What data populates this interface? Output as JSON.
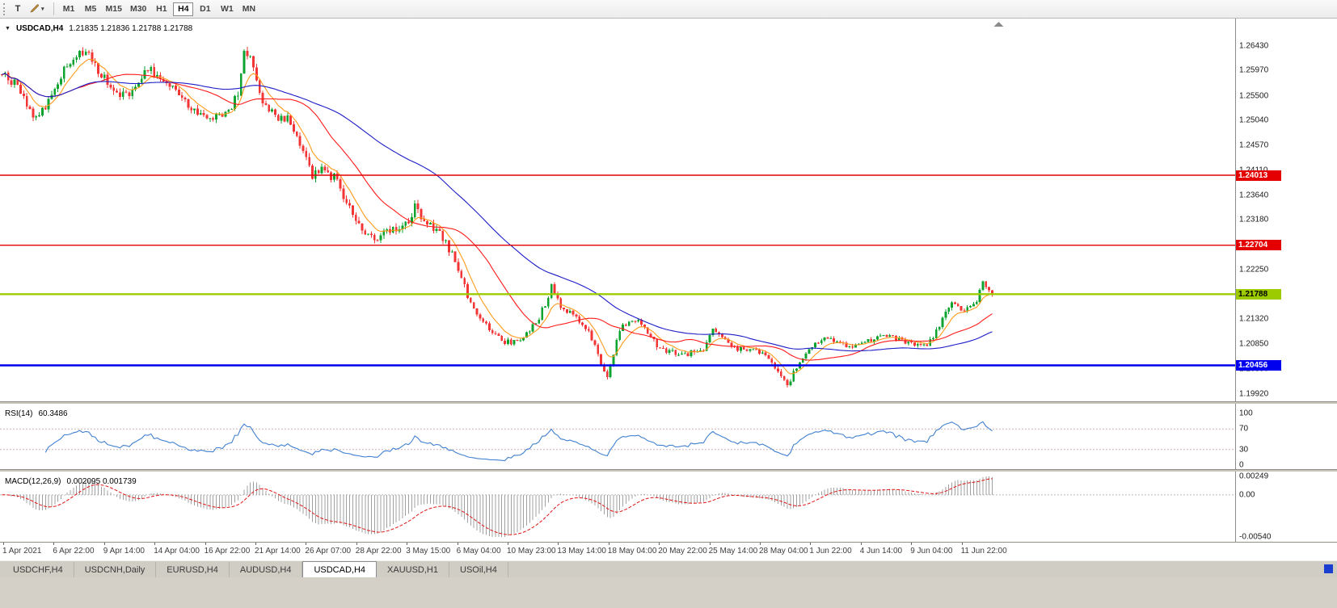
{
  "toolbar": {
    "text_tool": "T",
    "timeframes": [
      "M1",
      "M5",
      "M15",
      "M30",
      "H1",
      "H4",
      "D1",
      "W1",
      "MN"
    ],
    "active_timeframe": "H4"
  },
  "chart": {
    "symbol_title": "USDCAD,H4",
    "ohlc": "1.21835 1.21836 1.21788 1.21788"
  },
  "indicators": {
    "rsi_label": "RSI(14)",
    "rsi_value": "60.3486",
    "macd_label": "MACD(12,26,9)",
    "macd_values": "0.002095 0.001739"
  },
  "tabs": [
    {
      "label": "USDCHF,H4",
      "active": false
    },
    {
      "label": "USDCNH,Daily",
      "active": false
    },
    {
      "label": "EURUSD,H4",
      "active": false
    },
    {
      "label": "AUDUSD,H4",
      "active": false
    },
    {
      "label": "USDCAD,H4",
      "active": true
    },
    {
      "label": "XAUUSD,H1",
      "active": false
    },
    {
      "label": "USOil,H4",
      "active": false
    }
  ],
  "colors": {
    "up": "#0da32f",
    "down": "#f33535",
    "rsi_line": "#4080d0",
    "level_dash": "#c9b2b2",
    "zero_dash": "#b8b8b8"
  },
  "chart_data": {
    "type": "candlestick",
    "symbol": "USDCAD",
    "timeframe": "H4",
    "last_price": 1.21788,
    "candle_count": 320,
    "noise": 0.0014,
    "wick": 0.0006,
    "y_range": {
      "top_price": 1.26944,
      "bottom_price": 1.19784
    },
    "price_axis_labels": [
      "1.26430",
      "1.25970",
      "1.25500",
      "1.25040",
      "1.24570",
      "1.24110",
      "1.23640",
      "1.23180",
      "1.22710",
      "1.22250",
      "1.21780",
      "1.21320",
      "1.20850",
      "1.20390",
      "1.19920"
    ],
    "horizontal_lines": [
      {
        "price": 1.24013,
        "label": "1.24013",
        "color": "#e40000",
        "width": 1.4,
        "text_color": "#ffffff"
      },
      {
        "price": 1.22704,
        "label": "1.22704",
        "color": "#e40000",
        "width": 1.4,
        "text_color": "#ffffff"
      },
      {
        "price": 1.21788,
        "label": "1.21788",
        "color": "#9ccb00",
        "width": 2.4,
        "text_color": "#000000"
      },
      {
        "price": 1.20456,
        "label": "1.20456",
        "color": "#0000ee",
        "width": 2.4,
        "text_color": "#ffffff"
      }
    ],
    "moving_averages": [
      {
        "kind": "ema",
        "period": 8,
        "color": "#ff9a1a"
      },
      {
        "kind": "sma",
        "period": 25,
        "color": "#ff1a1a"
      },
      {
        "kind": "sma",
        "period": 64,
        "color": "#1c1cc8"
      }
    ],
    "rsi": {
      "period": 14,
      "levels": [
        70,
        30
      ],
      "axis_labels": [
        [
          "100",
          100
        ],
        [
          "70",
          70
        ],
        [
          "30",
          30
        ],
        [
          "0",
          0
        ]
      ]
    },
    "macd": {
      "fast": 12,
      "slow": 26,
      "signal": 9,
      "axis_top": "0.00249",
      "axis_zero": "0.00",
      "axis_bottom": "-0.00540",
      "hist_color": "#a0a0a0",
      "signal_color": "#e01515"
    },
    "time_labels": [
      "1 Apr 2021",
      "6 Apr 22:00",
      "9 Apr 14:00",
      "14 Apr 04:00",
      "16 Apr 22:00",
      "21 Apr 14:00",
      "26 Apr 07:00",
      "28 Apr 22:00",
      "3 May 15:00",
      "6 May 04:00",
      "10 May 23:00",
      "13 May 14:00",
      "18 May 04:00",
      "20 May 22:00",
      "25 May 14:00",
      "28 May 04:00",
      "1 Jun 22:00",
      "4 Jun 14:00",
      "9 Jun 04:00",
      "11 Jun 22:00"
    ],
    "price_path": [
      [
        0,
        1.259
      ],
      [
        4,
        1.2572
      ],
      [
        8,
        1.2534
      ],
      [
        10,
        1.2504
      ],
      [
        13,
        1.2521
      ],
      [
        16,
        1.2549
      ],
      [
        20,
        1.2601
      ],
      [
        24,
        1.2628
      ],
      [
        27,
        1.2633
      ],
      [
        29,
        1.2613
      ],
      [
        33,
        1.2581
      ],
      [
        37,
        1.2557
      ],
      [
        41,
        1.2551
      ],
      [
        45,
        1.2581
      ],
      [
        47,
        1.2603
      ],
      [
        50,
        1.2586
      ],
      [
        54,
        1.2566
      ],
      [
        58,
        1.2546
      ],
      [
        62,
        1.2526
      ],
      [
        66,
        1.2506
      ],
      [
        70,
        1.2513
      ],
      [
        73,
        1.2523
      ],
      [
        76,
        1.2556
      ],
      [
        78,
        1.2641
      ],
      [
        80,
        1.2619
      ],
      [
        82,
        1.2571
      ],
      [
        85,
        1.2526
      ],
      [
        88,
        1.2513
      ],
      [
        92,
        1.2507
      ],
      [
        95,
        1.2481
      ],
      [
        98,
        1.2432
      ],
      [
        100,
        1.2401
      ],
      [
        103,
        1.2409
      ],
      [
        106,
        1.2401
      ],
      [
        108,
        1.2393
      ],
      [
        110,
        1.2361
      ],
      [
        113,
        1.2331
      ],
      [
        116,
        1.2293
      ],
      [
        120,
        1.2281
      ],
      [
        124,
        1.2293
      ],
      [
        128,
        1.2303
      ],
      [
        131,
        1.2309
      ],
      [
        133,
        1.2341
      ],
      [
        136,
        1.2319
      ],
      [
        139,
        1.2301
      ],
      [
        142,
        1.2287
      ],
      [
        145,
        1.2251
      ],
      [
        148,
        1.2206
      ],
      [
        151,
        1.2161
      ],
      [
        154,
        1.2129
      ],
      [
        158,
        1.2109
      ],
      [
        161,
        1.2093
      ],
      [
        164,
        1.2087
      ],
      [
        168,
        1.2101
      ],
      [
        172,
        1.2123
      ],
      [
        175,
        1.2161
      ],
      [
        177,
        1.2193
      ],
      [
        179,
        1.2166
      ],
      [
        181,
        1.2151
      ],
      [
        184,
        1.2137
      ],
      [
        187,
        1.2125
      ],
      [
        190,
        1.2096
      ],
      [
        193,
        1.2046
      ],
      [
        195,
        1.2029
      ],
      [
        197,
        1.2071
      ],
      [
        199,
        1.2111
      ],
      [
        202,
        1.2131
      ],
      [
        205,
        1.2128
      ],
      [
        208,
        1.2106
      ],
      [
        211,
        1.2083
      ],
      [
        214,
        1.2073
      ],
      [
        218,
        1.2067
      ],
      [
        222,
        1.2069
      ],
      [
        226,
        1.2077
      ],
      [
        229,
        1.2109
      ],
      [
        232,
        1.2096
      ],
      [
        236,
        1.2079
      ],
      [
        240,
        1.2073
      ],
      [
        244,
        1.2069
      ],
      [
        247,
        1.2059
      ],
      [
        250,
        1.2036
      ],
      [
        253,
        1.2003
      ],
      [
        255,
        1.2031
      ],
      [
        257,
        1.2053
      ],
      [
        260,
        1.2073
      ],
      [
        263,
        1.2091
      ],
      [
        266,
        1.2096
      ],
      [
        269,
        1.2088
      ],
      [
        273,
        1.2082
      ],
      [
        277,
        1.2089
      ],
      [
        281,
        1.2097
      ],
      [
        285,
        1.2101
      ],
      [
        289,
        1.2093
      ],
      [
        293,
        1.2085
      ],
      [
        297,
        1.2083
      ],
      [
        300,
        1.2097
      ],
      [
        302,
        1.2121
      ],
      [
        304,
        1.2149
      ],
      [
        306,
        1.2159
      ],
      [
        308,
        1.2161
      ],
      [
        310,
        1.2147
      ],
      [
        312,
        1.2153
      ],
      [
        314,
        1.2169
      ],
      [
        316,
        1.2206
      ],
      [
        318,
        1.2189
      ],
      [
        319,
        1.21788
      ]
    ]
  }
}
